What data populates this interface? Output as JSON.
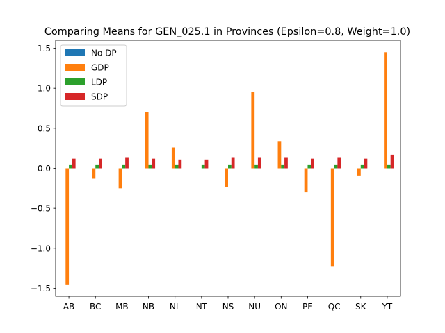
{
  "chart_data": {
    "type": "bar",
    "title": "Comparing Means for GEN_025.1 in Provinces (Epsilon=0.8, Weight=1.0)",
    "xlabel": "",
    "ylabel": "",
    "ylim": [
      -1.6,
      1.6
    ],
    "yticks": [
      -1.5,
      -1.0,
      -0.5,
      0.0,
      0.5,
      1.0,
      1.5
    ],
    "ytick_labels": [
      "−1.5",
      "−1.0",
      "−0.5",
      "0.0",
      "0.5",
      "1.0",
      "1.5"
    ],
    "categories": [
      "AB",
      "BC",
      "MB",
      "NB",
      "NL",
      "NT",
      "NS",
      "NU",
      "ON",
      "PE",
      "QC",
      "SK",
      "YT"
    ],
    "series": [
      {
        "name": "No DP",
        "color": "#1f77b4",
        "values": [
          0.0,
          0.0,
          0.0,
          0.0,
          0.0,
          0.0,
          0.0,
          0.0,
          0.0,
          0.0,
          0.0,
          0.0,
          0.0
        ]
      },
      {
        "name": "GDP",
        "color": "#ff7f0e",
        "values": [
          -1.46,
          -0.13,
          -0.25,
          0.7,
          0.26,
          0.0,
          -0.23,
          0.95,
          0.34,
          -0.3,
          -1.23,
          -0.09,
          1.45
        ]
      },
      {
        "name": "LDP",
        "color": "#2ca02c",
        "values": [
          0.04,
          0.04,
          0.04,
          0.04,
          0.04,
          0.04,
          0.04,
          0.04,
          0.04,
          0.04,
          0.04,
          0.04,
          0.04
        ]
      },
      {
        "name": "SDP",
        "color": "#d62728",
        "values": [
          0.12,
          0.12,
          0.13,
          0.12,
          0.11,
          0.11,
          0.13,
          0.13,
          0.13,
          0.12,
          0.13,
          0.12,
          0.17
        ]
      }
    ],
    "legend": {
      "position": "top-left"
    },
    "grid": false
  }
}
